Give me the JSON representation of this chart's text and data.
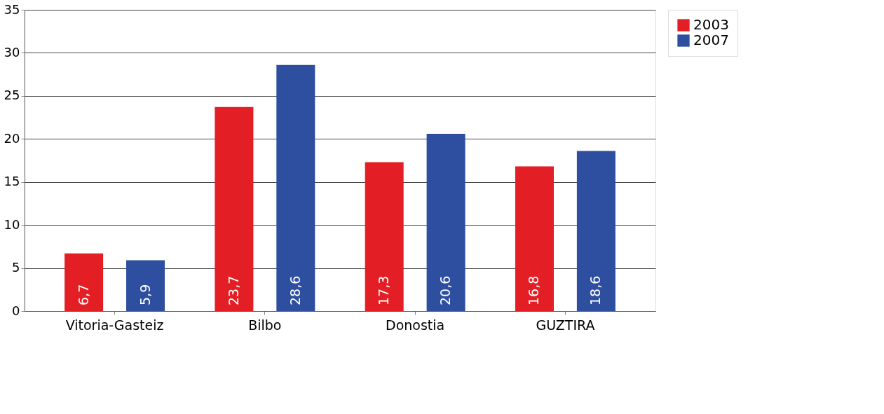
{
  "chart_data": {
    "type": "bar",
    "categories": [
      "Vitoria-Gasteiz",
      "Bilbo",
      "Donostia",
      "GUZTIRA"
    ],
    "series": [
      {
        "name": "2003",
        "color": "#e31e24",
        "values": [
          6.7,
          23.7,
          17.3,
          16.8
        ],
        "value_labels": [
          "6,7",
          "23,7",
          "17,3",
          "16,8"
        ]
      },
      {
        "name": "2007",
        "color": "#2e4fa0",
        "values": [
          5.9,
          28.6,
          20.6,
          18.6
        ],
        "value_labels": [
          "5,9",
          "28,6",
          "20,6",
          "18,6"
        ]
      }
    ],
    "ylim": [
      0,
      35
    ],
    "yticks": [
      0,
      5,
      10,
      15,
      20,
      25,
      30,
      35
    ],
    "grid": "y",
    "legend": "right"
  }
}
